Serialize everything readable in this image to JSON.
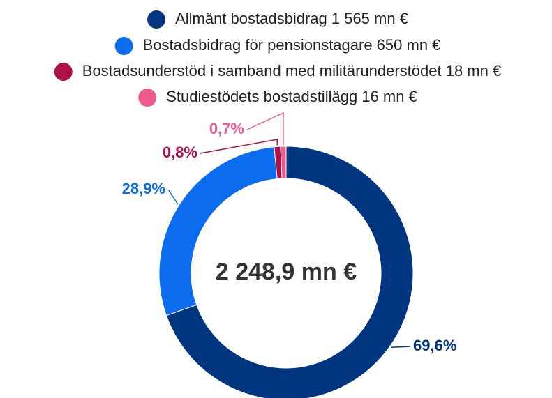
{
  "chart_data": {
    "type": "donut",
    "categories": [
      "Allmänt bostadsbidrag 1 565 mn €",
      "Bostadsbidrag för pensionstagare 650 mn €",
      "Bostadsunderstöd i samband med militärunderstödet 18 mn €",
      "Studiestödets bostadstillägg 16 mn €"
    ],
    "values": [
      69.6,
      28.9,
      0.8,
      0.7
    ],
    "value_labels": [
      "69,6%",
      "28,9%",
      "0,8%",
      "0,7%"
    ],
    "colors": [
      "#003580",
      "#0b6cf0",
      "#b0104a",
      "#ef5b8e"
    ],
    "center_label": "2 248,9 mn €"
  }
}
